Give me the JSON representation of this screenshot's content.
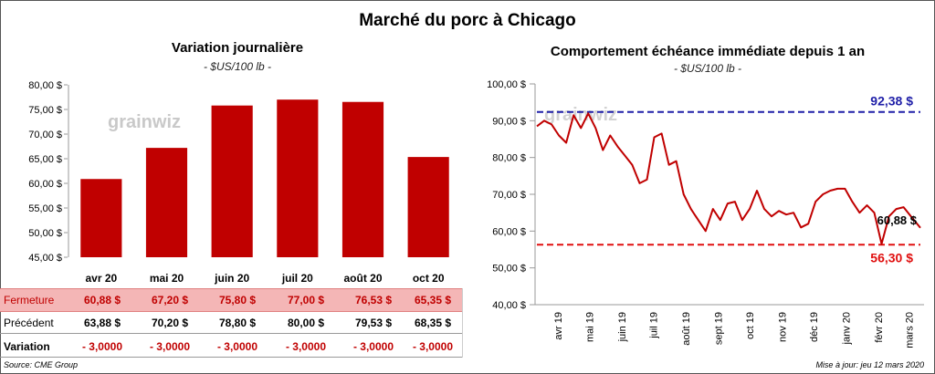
{
  "title": "Marché du porc à Chicago",
  "colors": {
    "bar": "#c00000",
    "line": "#c00000",
    "blue_ref": "#1f1fa8",
    "red_ref": "#e01010",
    "fermeture_bg": "#f4b6b6"
  },
  "watermark": "grainwiz",
  "left_panel": {
    "title": "Variation  journalière",
    "subtitle": "- $US/100 lb -",
    "table": {
      "fermeture": {
        "label": "Fermeture",
        "values": [
          "60,88  $",
          "67,20  $",
          "75,80  $",
          "77,00  $",
          "76,53  $",
          "65,35  $"
        ]
      },
      "precedent": {
        "label": "Précédent",
        "values": [
          "63,88  $",
          "70,20  $",
          "78,80  $",
          "80,00  $",
          "79,53  $",
          "68,35  $"
        ]
      },
      "variation": {
        "label": "Variation",
        "values": [
          "- 3,0000",
          "- 3,0000",
          "- 3,0000",
          "- 3,0000",
          "- 3,0000",
          "- 3,0000"
        ]
      }
    }
  },
  "right_panel": {
    "title": "Comportement  échéance immédiate depuis 1 an",
    "subtitle": "- $US/100 lb -"
  },
  "footer": {
    "source": "Source: CME Group",
    "update": "Mise à jour: jeu 12 mars 2020"
  },
  "chart_data": [
    {
      "type": "bar",
      "title": "Variation  journalière",
      "subtitle": "- $US/100 lb -",
      "categories": [
        "avr 20",
        "mai 20",
        "juin 20",
        "juil 20",
        "août 20",
        "oct 20"
      ],
      "values": [
        60.88,
        67.2,
        75.8,
        77.0,
        76.53,
        65.35
      ],
      "ylim": [
        45,
        80
      ],
      "yticks": [
        "80,00 $",
        "75,00 $",
        "70,00 $",
        "65,00 $",
        "60,00 $",
        "55,00 $",
        "50,00 $",
        "45,00 $"
      ],
      "ytick_values": [
        80,
        75,
        70,
        65,
        60,
        55,
        50,
        45
      ],
      "grid": false
    },
    {
      "type": "line",
      "title": "Comportement  échéance immédiate depuis 1 an",
      "subtitle": "- $US/100 lb -",
      "ylim": [
        40,
        100
      ],
      "yticks": [
        "100,00 $",
        "90,00 $",
        "80,00 $",
        "70,00 $",
        "60,00 $",
        "50,00 $",
        "40,00 $"
      ],
      "ytick_values": [
        100,
        90,
        80,
        70,
        60,
        50,
        40
      ],
      "xticks": [
        "avr 19",
        "mai 19",
        "juin 19",
        "juil 19",
        "août 19",
        "sept 19",
        "oct 19",
        "nov 19",
        "déc 19",
        "janv 20",
        "févr 20",
        "mars 20"
      ],
      "x": [
        "2019-03-12",
        "2019-03-19",
        "2019-03-26",
        "2019-04-02",
        "2019-04-09",
        "2019-04-16",
        "2019-04-23",
        "2019-04-30",
        "2019-05-07",
        "2019-05-14",
        "2019-05-21",
        "2019-05-28",
        "2019-06-04",
        "2019-06-11",
        "2019-06-18",
        "2019-06-25",
        "2019-07-02",
        "2019-07-09",
        "2019-07-16",
        "2019-07-23",
        "2019-07-30",
        "2019-08-06",
        "2019-08-13",
        "2019-08-20",
        "2019-08-27",
        "2019-09-03",
        "2019-09-10",
        "2019-09-17",
        "2019-09-24",
        "2019-10-01",
        "2019-10-08",
        "2019-10-15",
        "2019-10-22",
        "2019-10-29",
        "2019-11-05",
        "2019-11-12",
        "2019-11-19",
        "2019-11-26",
        "2019-12-03",
        "2019-12-10",
        "2019-12-17",
        "2019-12-24",
        "2019-12-31",
        "2020-01-07",
        "2020-01-14",
        "2020-01-21",
        "2020-01-28",
        "2020-02-04",
        "2020-02-11",
        "2020-02-18",
        "2020-02-25",
        "2020-03-03",
        "2020-03-12"
      ],
      "series": [
        {
          "values": [
            88.5,
            90.0,
            89.0,
            86.0,
            84.0,
            91.5,
            88.0,
            92.0,
            88.0,
            82.0,
            86.0,
            83.0,
            80.5,
            78.0,
            73.0,
            74.0,
            85.5,
            86.5,
            78.0,
            79.0,
            70.0,
            66.0,
            63.0,
            60.0,
            66.0,
            63.0,
            67.5,
            68.0,
            63.0,
            66.0,
            71.0,
            66.0,
            64.0,
            65.5,
            64.5,
            65.0,
            61.0,
            62.0,
            68.0,
            70.0,
            71.0,
            71.5,
            71.5,
            68.0,
            65.0,
            67.0,
            65.0,
            56.5,
            64.0,
            66.0,
            66.5,
            64.0,
            60.88
          ]
        }
      ],
      "reference_lines": [
        {
          "label": "92,38 $",
          "value": 92.38,
          "color": "#1f1fa8"
        },
        {
          "label": "56,30 $",
          "value": 56.3,
          "color": "#e01010"
        }
      ],
      "last_value_label": "60,88 $",
      "grid": false
    }
  ]
}
